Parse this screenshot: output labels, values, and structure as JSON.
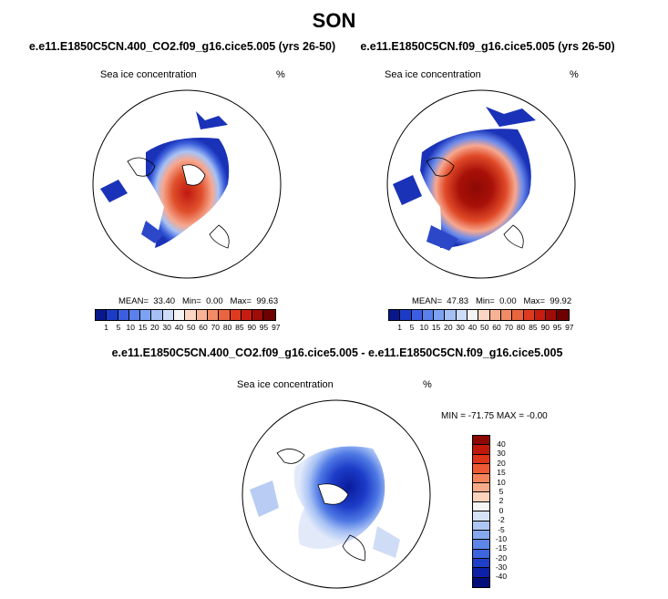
{
  "title": "SON",
  "panels": [
    {
      "id": "co2",
      "case_title": "e.e11.E1850C5CN.400_CO2.f09_g16.cice5.005 (yrs 26-50)",
      "variable": "Sea ice concentration",
      "units": "%",
      "stats": {
        "mean_label": "MEAN=",
        "mean": "33.40",
        "min_label": "Min=",
        "min": "0.00",
        "max_label": "Max=",
        "max": "99.63"
      }
    },
    {
      "id": "control",
      "case_title": "e.e11.E1850C5CN.f09_g16.cice5.005 (yrs 26-50)",
      "variable": "Sea ice concentration",
      "units": "%",
      "stats": {
        "mean_label": "MEAN=",
        "mean": "47.83",
        "min_label": "Min=",
        "min": "0.00",
        "max_label": "Max=",
        "max": "99.92"
      }
    }
  ],
  "diff_panel": {
    "case_title": "e.e11.E1850C5CN.400_CO2.f09_g16.cice5.005 - e.e11.E1850C5CN.f09_g16.cice5.005",
    "variable": "Sea ice concentration",
    "units": "%",
    "stats_text": "MIN = -71.75 MAX =  -0.00"
  },
  "colorbar_abs": {
    "ticks": [
      "1",
      "5",
      "10",
      "15",
      "20",
      "30",
      "40",
      "50",
      "60",
      "70",
      "80",
      "85",
      "90",
      "95",
      "97"
    ],
    "colors": [
      "#08188c",
      "#1c3cc8",
      "#3c5ee0",
      "#5a80ec",
      "#7ea2f2",
      "#a6c0f6",
      "#cddcf8",
      "#f4f4f4",
      "#fbd6c4",
      "#f8b396",
      "#f28c66",
      "#ea6440",
      "#df3a20",
      "#c81c10",
      "#a00c08",
      "#6e0000"
    ]
  },
  "colorbar_diff": {
    "ticks": [
      "40",
      "30",
      "20",
      "15",
      "10",
      "5",
      "2",
      "0",
      "-2",
      "-5",
      "-10",
      "-15",
      "-20",
      "-30",
      "-40"
    ],
    "colors": [
      "#8c0800",
      "#c01808",
      "#de3418",
      "#ee5a34",
      "#f4845c",
      "#f8ab88",
      "#fbd3bd",
      "#f6f6f6",
      "#d6e2f8",
      "#aec6f4",
      "#86a8ee",
      "#5e86e6",
      "#3c64dc",
      "#1e40c8",
      "#0c20a8",
      "#040e7a"
    ]
  }
}
